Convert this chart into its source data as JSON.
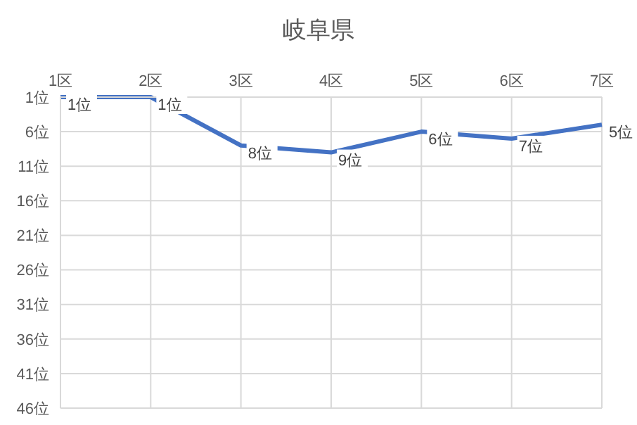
{
  "chart_data": {
    "type": "line",
    "title": "岐阜県",
    "categories": [
      "1区",
      "2区",
      "3区",
      "4区",
      "5区",
      "6区",
      "7区"
    ],
    "series": [
      {
        "color": "#4472c4",
        "values": [
          1,
          1,
          8,
          9,
          6,
          7,
          5
        ],
        "value_labels": [
          "1位",
          "1位",
          "8位",
          "9位",
          "6位",
          "7位",
          "5位"
        ]
      }
    ],
    "ylim": [
      46,
      1
    ],
    "yticks": [
      {
        "value": 1,
        "label": "1位"
      },
      {
        "value": 6,
        "label": "6位"
      },
      {
        "value": 11,
        "label": "11位"
      },
      {
        "value": 16,
        "label": "16位"
      },
      {
        "value": 21,
        "label": "21位"
      },
      {
        "value": 26,
        "label": "26位"
      },
      {
        "value": 31,
        "label": "31位"
      },
      {
        "value": 36,
        "label": "36位"
      },
      {
        "value": 41,
        "label": "41位"
      },
      {
        "value": 46,
        "label": "46位"
      }
    ],
    "grid": true,
    "marker": "none",
    "line_style": "solid",
    "legend": false
  }
}
